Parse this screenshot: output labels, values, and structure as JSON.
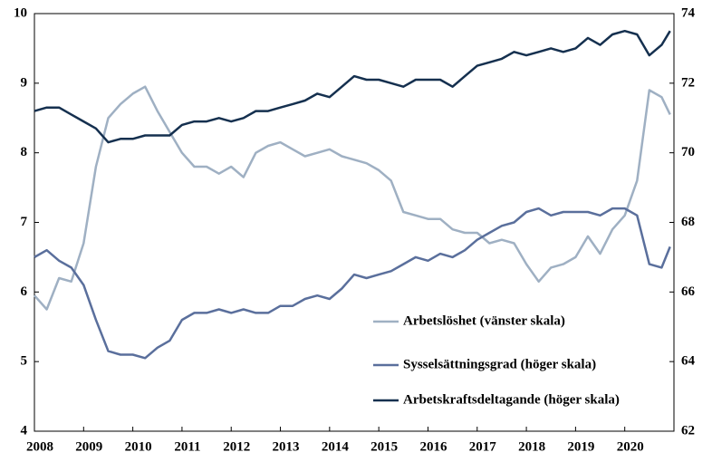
{
  "chart_data": {
    "type": "line",
    "x": [
      2008,
      2008.25,
      2008.5,
      2008.75,
      2009,
      2009.25,
      2009.5,
      2009.75,
      2010,
      2010.25,
      2010.5,
      2010.75,
      2011,
      2011.25,
      2011.5,
      2011.75,
      2012,
      2012.25,
      2012.5,
      2012.75,
      2013,
      2013.25,
      2013.5,
      2013.75,
      2014,
      2014.25,
      2014.5,
      2014.75,
      2015,
      2015.25,
      2015.5,
      2015.75,
      2016,
      2016.25,
      2016.5,
      2016.75,
      2017,
      2017.25,
      2017.5,
      2017.75,
      2018,
      2018.25,
      2018.5,
      2018.75,
      2019,
      2019.25,
      2019.5,
      2019.75,
      2020,
      2020.25,
      2020.5,
      2020.75,
      2020.92
    ],
    "series": [
      {
        "name": "Arbetslöshet (vänster skala)",
        "color": "#9fb0c3",
        "values": [
          5.95,
          5.75,
          6.2,
          6.15,
          6.7,
          7.8,
          8.5,
          8.7,
          8.85,
          8.95,
          8.6,
          8.3,
          8.0,
          7.8,
          7.8,
          7.7,
          7.8,
          7.65,
          8.0,
          8.1,
          8.15,
          8.05,
          7.95,
          8.0,
          8.05,
          7.95,
          7.9,
          7.85,
          7.75,
          7.6,
          7.15,
          7.1,
          7.05,
          7.05,
          6.9,
          6.85,
          6.85,
          6.7,
          6.75,
          6.7,
          6.4,
          6.15,
          6.35,
          6.4,
          6.5,
          6.8,
          6.55,
          6.9,
          7.1,
          7.6,
          8.9,
          8.8,
          8.55
        ]
      },
      {
        "name": "Sysselsättningsgrad (höger skala)",
        "color": "#5a6f9c",
        "axis": "y2",
        "values": [
          67,
          67.2,
          66.9,
          66.7,
          66.2,
          65.2,
          64.3,
          64.2,
          64.2,
          64.1,
          64.4,
          64.6,
          65.2,
          65.4,
          65.4,
          65.5,
          65.4,
          65.5,
          65.4,
          65.4,
          65.6,
          65.6,
          65.8,
          65.9,
          65.8,
          66.1,
          66.5,
          66.4,
          66.5,
          66.6,
          66.8,
          67.0,
          66.9,
          67.1,
          67.0,
          67.2,
          67.5,
          67.7,
          67.9,
          68.0,
          68.3,
          68.4,
          68.2,
          68.3,
          68.3,
          68.3,
          68.2,
          68.4,
          68.4,
          68.2,
          66.8,
          66.7,
          67.3
        ]
      },
      {
        "name": "Arbetskraftsdeltagande (höger skala)",
        "color": "#15304f",
        "axis": "y2",
        "values": [
          71.2,
          71.3,
          71.3,
          71.1,
          70.9,
          70.7,
          70.3,
          70.4,
          70.4,
          70.5,
          70.5,
          70.5,
          70.8,
          70.9,
          70.9,
          71.0,
          70.9,
          71.0,
          71.2,
          71.2,
          71.3,
          71.4,
          71.5,
          71.7,
          71.6,
          71.9,
          72.2,
          72.1,
          72.1,
          72.0,
          71.9,
          72.1,
          72.1,
          72.1,
          71.9,
          72.2,
          72.5,
          72.6,
          72.7,
          72.9,
          72.8,
          72.9,
          73.0,
          72.9,
          73.0,
          73.3,
          73.1,
          73.4,
          73.5,
          73.4,
          72.8,
          73.1,
          73.5
        ]
      }
    ],
    "xlim": [
      2008,
      2021
    ],
    "xticks": [
      2008,
      2009,
      2010,
      2011,
      2012,
      2013,
      2014,
      2015,
      2016,
      2017,
      2018,
      2019,
      2020
    ],
    "ylim": [
      4,
      10
    ],
    "yticks": [
      4,
      5,
      6,
      7,
      8,
      9,
      10
    ],
    "y2lim": [
      62,
      74
    ],
    "y2ticks": [
      62,
      64,
      66,
      68,
      70,
      72,
      74
    ],
    "legend": "lower right"
  }
}
